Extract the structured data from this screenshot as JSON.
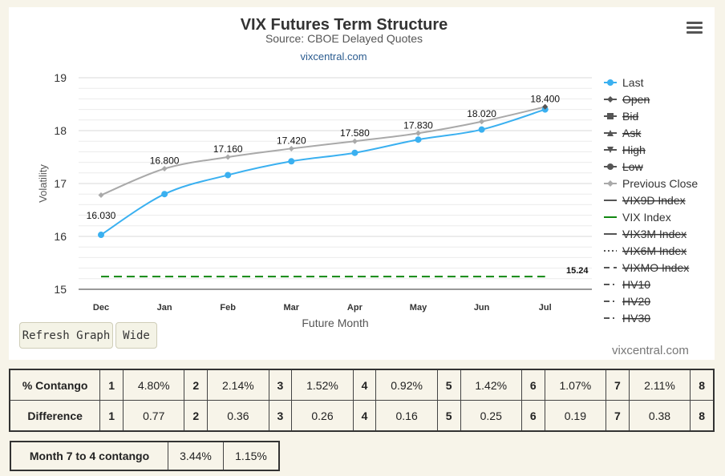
{
  "chart_data": {
    "type": "line",
    "title": "VIX Futures Term Structure",
    "subtitle": "Source: CBOE Delayed Quotes",
    "site_label": "vixcentral.com",
    "xlabel": "Future Month",
    "ylabel": "Volatility",
    "categories": [
      "Dec",
      "Jan",
      "Feb",
      "Mar",
      "Apr",
      "May",
      "Jun",
      "Jul"
    ],
    "ylim": [
      15,
      19
    ],
    "yticks": [
      15,
      16,
      17,
      18,
      19
    ],
    "grid": true,
    "series": [
      {
        "name": "Last",
        "color": "#3ab0f0",
        "values": [
          16.03,
          16.8,
          17.16,
          17.42,
          17.58,
          17.83,
          18.02,
          18.4
        ],
        "labels": [
          "16.030",
          "16.800",
          "17.160",
          "17.420",
          "17.580",
          "17.830",
          "18.020",
          "18.400"
        ]
      },
      {
        "name": "Previous Close",
        "color": "#a9a9a9",
        "values": [
          16.78,
          17.28,
          17.5,
          17.66,
          17.8,
          17.95,
          18.17,
          18.45
        ]
      },
      {
        "name": "VIX Index",
        "color": "#118811",
        "values": [
          15.24,
          15.24,
          15.24,
          15.24,
          15.24,
          15.24,
          15.24,
          15.24
        ],
        "end_label": "15.24"
      }
    ],
    "legend_position": "right",
    "legend": [
      {
        "name": "Last",
        "marker": "circle",
        "line": "solid",
        "color": "#3ab0f0",
        "enabled": true
      },
      {
        "name": "Open",
        "marker": "diamond",
        "line": "solid",
        "color": "#555555",
        "enabled": false
      },
      {
        "name": "Bid",
        "marker": "square",
        "line": "solid",
        "color": "#555555",
        "enabled": false
      },
      {
        "name": "Ask",
        "marker": "triangle",
        "line": "solid",
        "color": "#555555",
        "enabled": false
      },
      {
        "name": "High",
        "marker": "triangle-down",
        "line": "solid",
        "color": "#555555",
        "enabled": false
      },
      {
        "name": "Low",
        "marker": "circle",
        "line": "solid",
        "color": "#555555",
        "enabled": false
      },
      {
        "name": "Previous Close",
        "marker": "diamond",
        "line": "solid",
        "color": "#a9a9a9",
        "enabled": true
      },
      {
        "name": "VIX9D Index",
        "marker": "none",
        "line": "solid",
        "color": "#555555",
        "enabled": false
      },
      {
        "name": "VIX Index",
        "marker": "none",
        "line": "solid",
        "color": "#118811",
        "enabled": true
      },
      {
        "name": "VIX3M Index",
        "marker": "none",
        "line": "solid",
        "color": "#777777",
        "enabled": false
      },
      {
        "name": "VIX6M Index",
        "marker": "none",
        "line": "dotted",
        "color": "#777777",
        "enabled": false
      },
      {
        "name": "VIXMO Index",
        "marker": "none",
        "line": "dashed",
        "color": "#777777",
        "enabled": false
      },
      {
        "name": "HV10",
        "marker": "none",
        "line": "dashdot",
        "color": "#777777",
        "enabled": false
      },
      {
        "name": "HV20",
        "marker": "none",
        "line": "dashdot",
        "color": "#777777",
        "enabled": false
      },
      {
        "name": "HV30",
        "marker": "none",
        "line": "dashdot",
        "color": "#777777",
        "enabled": false
      }
    ]
  },
  "buttons": {
    "refresh": "Refresh Graph",
    "wide": "Wide"
  },
  "site_bottom": "vixcentral.com",
  "contango_table": {
    "rows": [
      {
        "label": "% Contango",
        "cells": [
          "1",
          "4.80%",
          "2",
          "2.14%",
          "3",
          "1.52%",
          "4",
          "0.92%",
          "5",
          "1.42%",
          "6",
          "1.07%",
          "7",
          "2.11%",
          "8"
        ]
      },
      {
        "label": "Difference",
        "cells": [
          "1",
          "0.77",
          "2",
          "0.36",
          "3",
          "0.26",
          "4",
          "0.16",
          "5",
          "0.25",
          "6",
          "0.19",
          "7",
          "0.38",
          "8"
        ]
      }
    ]
  },
  "month74": {
    "label": "Month 7 to 4 contango",
    "values": [
      "3.44%",
      "1.15%"
    ]
  }
}
